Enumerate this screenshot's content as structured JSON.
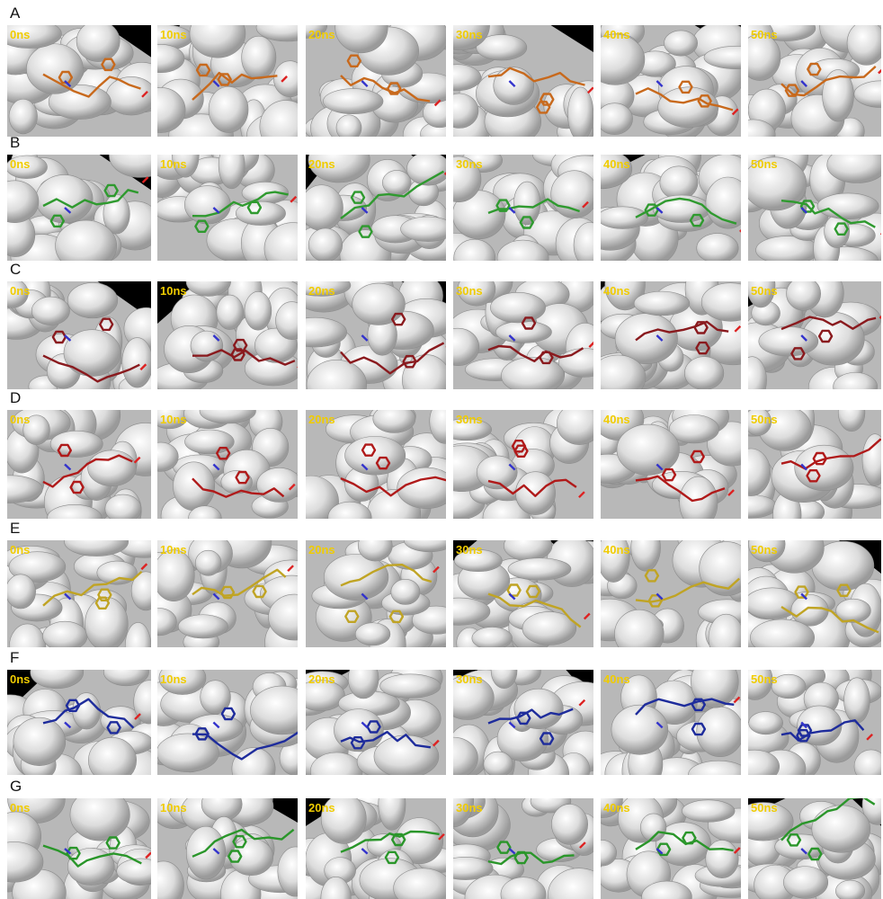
{
  "panels": [
    {
      "label": "A",
      "color": "#c8691c",
      "times": [
        "0ns",
        "10ns",
        "20ns",
        "30ns",
        "40ns",
        "50ns"
      ]
    },
    {
      "label": "B",
      "color": "#2f9a2f",
      "times": [
        "0ns",
        "10ns",
        "20ns",
        "30ns",
        "40ns",
        "50ns"
      ]
    },
    {
      "label": "C",
      "color": "#8a1a1e",
      "times": [
        "0ns",
        "10ns",
        "20ns",
        "30ns",
        "40ns",
        "50ns"
      ]
    },
    {
      "label": "D",
      "color": "#b01a1a",
      "times": [
        "0ns",
        "10ns",
        "20ns",
        "30ns",
        "40ns",
        "50ns"
      ]
    },
    {
      "label": "E",
      "color": "#c0a424",
      "times": [
        "0ns",
        "10ns",
        "20ns",
        "30ns",
        "40ns",
        "50ns"
      ]
    },
    {
      "label": "F",
      "color": "#1e2c9c",
      "times": [
        "0ns",
        "10ns",
        "20ns",
        "30ns",
        "40ns",
        "50ns"
      ]
    },
    {
      "label": "G",
      "color": "#2a962a",
      "times": [
        "0ns",
        "10ns",
        "20ns",
        "30ns",
        "40ns",
        "50ns"
      ]
    }
  ]
}
